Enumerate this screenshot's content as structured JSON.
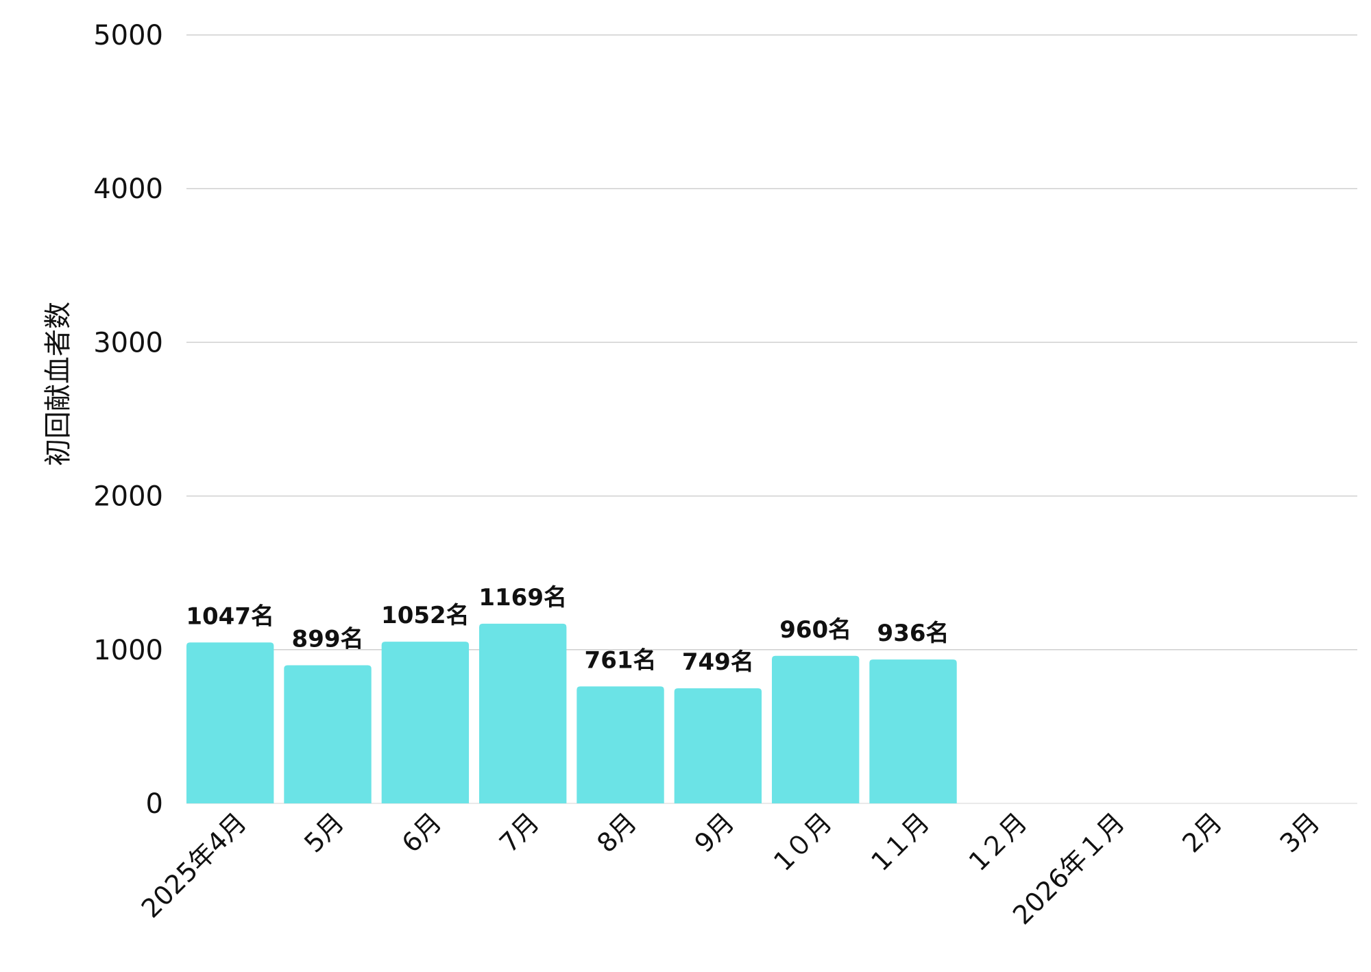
{
  "chart_data": {
    "type": "bar",
    "title": "",
    "xlabel": "",
    "ylabel": "初回献血者数",
    "ylim": [
      0,
      5000
    ],
    "yticks": [
      0,
      1000,
      2000,
      3000,
      4000,
      5000
    ],
    "grid": true,
    "legend": "none",
    "bar_color": "#6be3e6",
    "categories": [
      "2025年4月",
      "5月",
      "6月",
      "7月",
      "8月",
      "9月",
      "1０月",
      "1１月",
      "1２月",
      "2026年１月",
      "2月",
      "3月"
    ],
    "values": [
      1047,
      899,
      1052,
      1169,
      761,
      749,
      960,
      936,
      null,
      null,
      null,
      null
    ],
    "data_labels": [
      "1047名",
      "899名",
      "1052名",
      "1169名",
      "761名",
      "749名",
      "960名",
      "936名",
      "",
      "",
      "",
      ""
    ]
  }
}
